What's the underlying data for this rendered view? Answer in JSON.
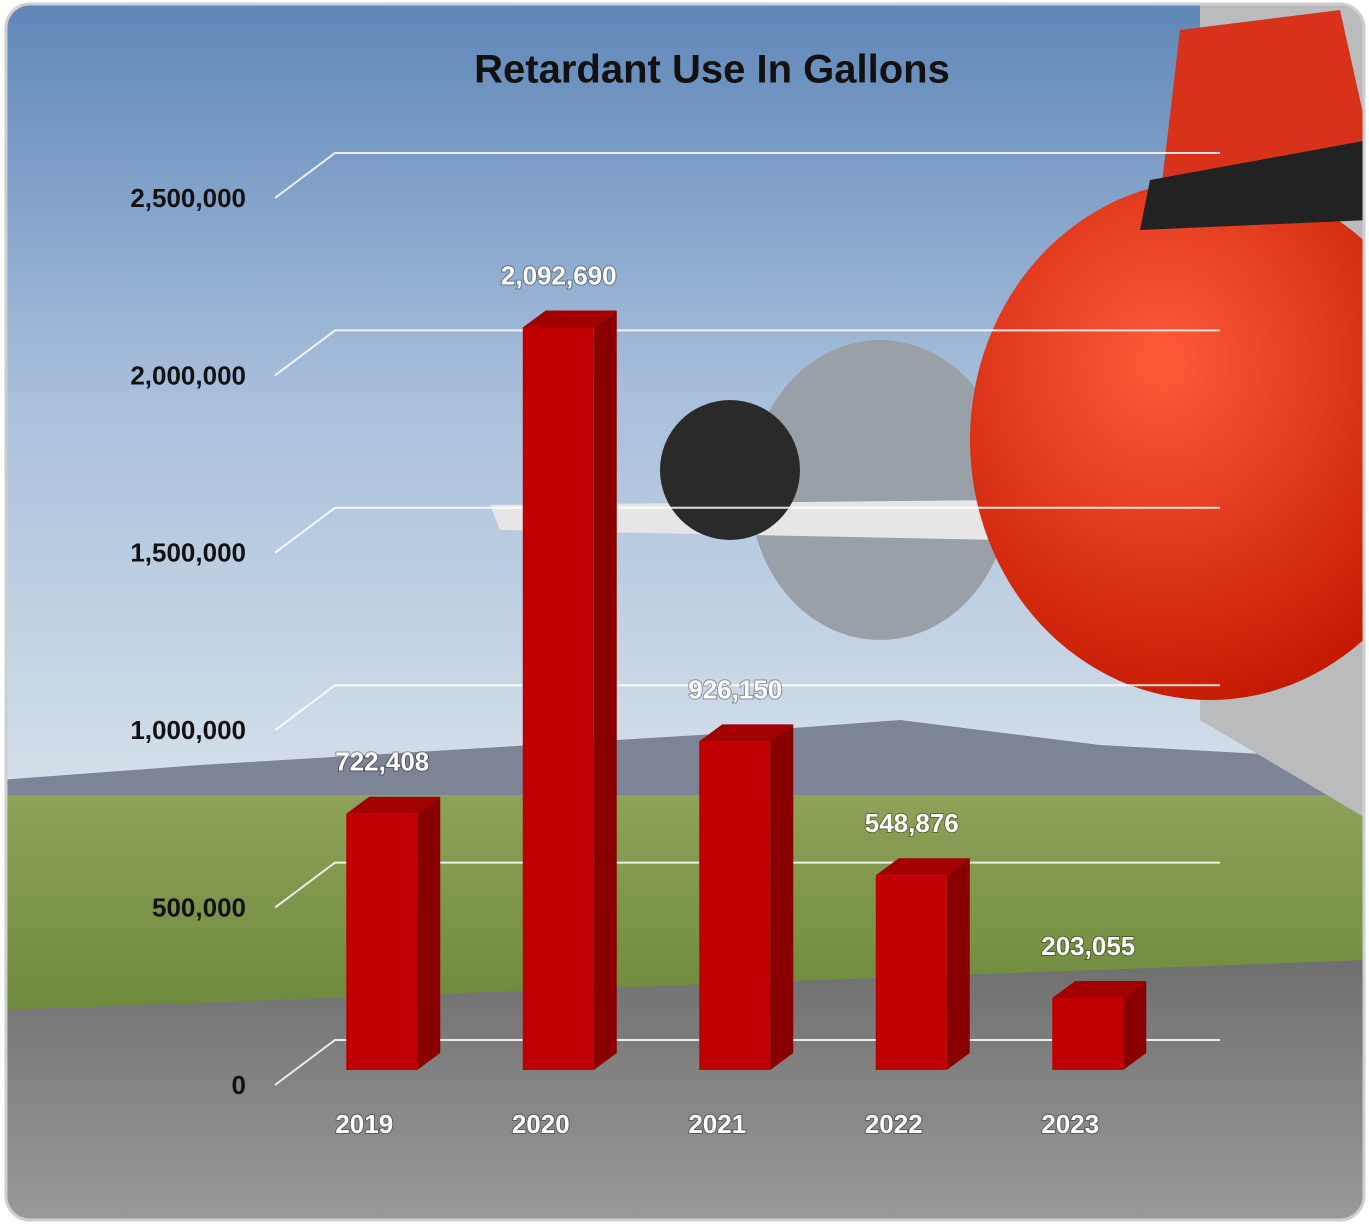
{
  "chart_data": {
    "type": "bar",
    "title": "Retardant Use In Gallons",
    "categories": [
      "2019",
      "2020",
      "2021",
      "2022",
      "2023"
    ],
    "values": [
      722408,
      2092690,
      926150,
      548876,
      203055
    ],
    "value_labels": [
      "722,408",
      "2,092,690",
      "926,150",
      "548,876",
      "203,055"
    ],
    "color": "#c00000",
    "ylim": [
      0,
      2500000
    ],
    "yticks": [
      0,
      {
        "value": 500000,
        "label": "500,000"
      },
      {
        "value": 1000000,
        "label": "1,000,000"
      },
      {
        "value": 1500000,
        "label": "1,500,000"
      },
      {
        "value": 2000000,
        "label": "2,000,000"
      },
      {
        "value": 2500000,
        "label": "2,500,000"
      }
    ],
    "grid": true
  }
}
